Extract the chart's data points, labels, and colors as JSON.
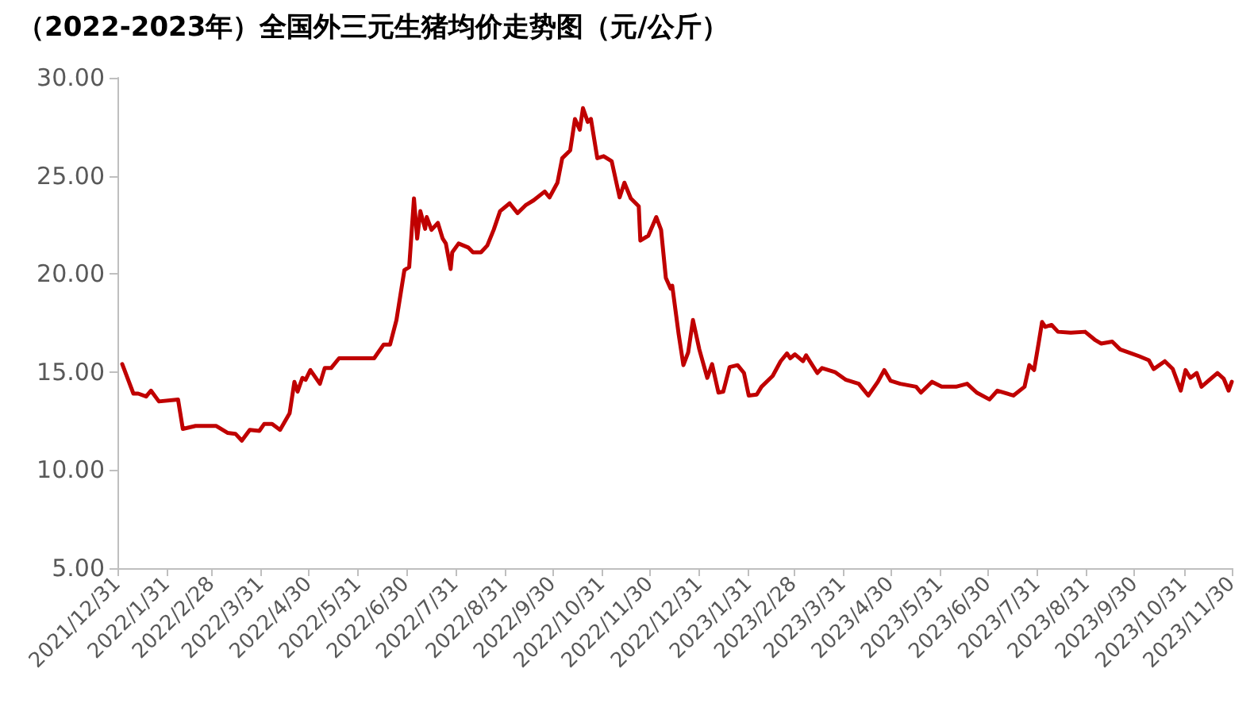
{
  "chart_data": {
    "type": "line",
    "title": "（2022-2023年）全国外三元生猪均价走势图（元/公斤）",
    "x": [
      "2022-01-03",
      "2022-01-10",
      "2022-01-13",
      "2022-01-18",
      "2022-01-21",
      "2022-01-26",
      "2022-02-07",
      "2022-02-10",
      "2022-02-18",
      "2022-03-03",
      "2022-03-10",
      "2022-03-15",
      "2022-03-19",
      "2022-03-24",
      "2022-03-30",
      "2022-04-02",
      "2022-04-07",
      "2022-04-12",
      "2022-04-18",
      "2022-04-21",
      "2022-04-23",
      "2022-04-26",
      "2022-04-28",
      "2022-05-01",
      "2022-05-07",
      "2022-05-10",
      "2022-05-14",
      "2022-05-19",
      "2022-05-24",
      "2022-06-10",
      "2022-06-16",
      "2022-06-20",
      "2022-06-24",
      "2022-06-29",
      "2022-07-02",
      "2022-07-05",
      "2022-07-07",
      "2022-07-09",
      "2022-07-12",
      "2022-07-13",
      "2022-07-16",
      "2022-07-20",
      "2022-07-23",
      "2022-07-25",
      "2022-07-28",
      "2022-07-29",
      "2022-08-02",
      "2022-08-08",
      "2022-08-11",
      "2022-08-16",
      "2022-08-20",
      "2022-08-24",
      "2022-08-28",
      "2022-09-03",
      "2022-09-08",
      "2022-09-13",
      "2022-09-18",
      "2022-09-25",
      "2022-09-28",
      "2022-10-03",
      "2022-10-06",
      "2022-10-11",
      "2022-10-14",
      "2022-10-17",
      "2022-10-19",
      "2022-10-22",
      "2022-10-24",
      "2022-10-28",
      "2022-11-01",
      "2022-11-06",
      "2022-11-11",
      "2022-11-14",
      "2022-11-18",
      "2022-11-23",
      "2022-11-24",
      "2022-11-29",
      "2022-12-04",
      "2022-12-07",
      "2022-12-10",
      "2022-12-13",
      "2022-12-14",
      "2022-12-18",
      "2022-12-21",
      "2022-12-24",
      "2022-12-27",
      "2022-12-31",
      "2023-01-05",
      "2023-01-08",
      "2023-01-12",
      "2023-01-15",
      "2023-01-19",
      "2023-01-24",
      "2023-01-28",
      "2023-01-31",
      "2023-02-05",
      "2023-02-08",
      "2023-02-15",
      "2023-02-20",
      "2023-02-24",
      "2023-02-26",
      "2023-03-01",
      "2023-03-06",
      "2023-03-08",
      "2023-03-15",
      "2023-03-18",
      "2023-03-26",
      "2023-04-02",
      "2023-04-10",
      "2023-04-16",
      "2023-04-22",
      "2023-04-26",
      "2023-04-30",
      "2023-05-06",
      "2023-05-16",
      "2023-05-19",
      "2023-05-26",
      "2023-06-01",
      "2023-06-10",
      "2023-06-17",
      "2023-06-23",
      "2023-07-01",
      "2023-07-06",
      "2023-07-16",
      "2023-07-23",
      "2023-07-26",
      "2023-07-29",
      "2023-08-01",
      "2023-08-03",
      "2023-08-05",
      "2023-08-09",
      "2023-08-13",
      "2023-08-21",
      "2023-08-30",
      "2023-09-05",
      "2023-09-09",
      "2023-09-16",
      "2023-09-21",
      "2023-09-28",
      "2023-10-03",
      "2023-10-09",
      "2023-10-12",
      "2023-10-19",
      "2023-10-24",
      "2023-10-29",
      "2023-11-01",
      "2023-11-04",
      "2023-11-08",
      "2023-11-11",
      "2023-11-21",
      "2023-11-25",
      "2023-11-28",
      "2023-11-30"
    ],
    "series": [
      {
        "color": "#c00000",
        "values": [
          15.4,
          13.9,
          13.9,
          13.75,
          14.05,
          13.5,
          13.6,
          12.1,
          12.25,
          12.25,
          11.9,
          11.85,
          11.5,
          12.05,
          12.0,
          12.35,
          12.35,
          12.05,
          12.9,
          14.5,
          14.0,
          14.7,
          14.6,
          15.1,
          14.4,
          15.2,
          15.2,
          15.7,
          15.7,
          15.7,
          16.4,
          16.4,
          17.65,
          20.2,
          20.35,
          23.85,
          21.8,
          23.2,
          22.3,
          22.9,
          22.25,
          22.6,
          21.8,
          21.55,
          20.25,
          21.1,
          21.55,
          21.35,
          21.1,
          21.1,
          21.45,
          22.25,
          23.2,
          23.6,
          23.1,
          23.5,
          23.75,
          24.2,
          23.9,
          24.65,
          25.9,
          26.3,
          27.9,
          27.35,
          28.45,
          27.75,
          27.9,
          25.9,
          26.0,
          25.75,
          23.9,
          24.65,
          23.85,
          23.45,
          21.7,
          21.95,
          22.9,
          22.25,
          19.8,
          19.25,
          19.4,
          16.95,
          15.35,
          16.0,
          17.65,
          16.15,
          14.7,
          15.4,
          13.95,
          14.0,
          15.25,
          15.35,
          14.95,
          13.8,
          13.85,
          14.25,
          14.8,
          15.55,
          15.95,
          15.7,
          15.9,
          15.55,
          15.85,
          14.95,
          15.2,
          15.0,
          14.6,
          14.4,
          13.8,
          14.5,
          15.1,
          14.55,
          14.4,
          14.25,
          13.95,
          14.5,
          14.25,
          14.25,
          14.4,
          13.95,
          13.6,
          14.05,
          13.8,
          14.25,
          15.35,
          15.1,
          16.55,
          17.55,
          17.3,
          17.4,
          17.05,
          17.0,
          17.05,
          16.65,
          16.45,
          16.55,
          16.15,
          15.95,
          15.8,
          15.6,
          15.15,
          15.55,
          15.15,
          14.05,
          15.1,
          14.7,
          14.95,
          14.25,
          14.95,
          14.65,
          14.05,
          14.5
        ]
      }
    ],
    "xlim": [
      "2021-12-31",
      "2023-11-30"
    ],
    "xticks": [
      {
        "value": "2021-12-31",
        "label": "2021/12/31"
      },
      {
        "value": "2022-01-31",
        "label": "2022/1/31"
      },
      {
        "value": "2022-02-28",
        "label": "2022/2/28"
      },
      {
        "value": "2022-03-31",
        "label": "2022/3/31"
      },
      {
        "value": "2022-04-30",
        "label": "2022/4/30"
      },
      {
        "value": "2022-05-31",
        "label": "2022/5/31"
      },
      {
        "value": "2022-06-30",
        "label": "2022/6/30"
      },
      {
        "value": "2022-07-31",
        "label": "2022/7/31"
      },
      {
        "value": "2022-08-31",
        "label": "2022/8/31"
      },
      {
        "value": "2022-09-30",
        "label": "2022/9/30"
      },
      {
        "value": "2022-10-31",
        "label": "2022/10/31"
      },
      {
        "value": "2022-11-30",
        "label": "2022/11/30"
      },
      {
        "value": "2022-12-31",
        "label": "2022/12/31"
      },
      {
        "value": "2023-01-31",
        "label": "2023/1/31"
      },
      {
        "value": "2023-02-28",
        "label": "2023/2/28"
      },
      {
        "value": "2023-03-31",
        "label": "2023/3/31"
      },
      {
        "value": "2023-04-30",
        "label": "2023/4/30"
      },
      {
        "value": "2023-05-31",
        "label": "2023/5/31"
      },
      {
        "value": "2023-06-30",
        "label": "2023/6/30"
      },
      {
        "value": "2023-07-31",
        "label": "2023/7/31"
      },
      {
        "value": "2023-08-31",
        "label": "2023/8/31"
      },
      {
        "value": "2023-09-30",
        "label": "2023/9/30"
      },
      {
        "value": "2023-10-31",
        "label": "2023/10/31"
      },
      {
        "value": "2023-11-30",
        "label": "2023/11/30"
      }
    ],
    "ylim": [
      5,
      30
    ],
    "yticks": [
      {
        "value": 5,
        "label": "5.00"
      },
      {
        "value": 10,
        "label": "10.00"
      },
      {
        "value": 15,
        "label": "15.00"
      },
      {
        "value": 20,
        "label": "20.00"
      },
      {
        "value": 25,
        "label": "25.00"
      },
      {
        "value": 30,
        "label": "30.00"
      }
    ],
    "marker": "none",
    "line_style": "solid"
  }
}
